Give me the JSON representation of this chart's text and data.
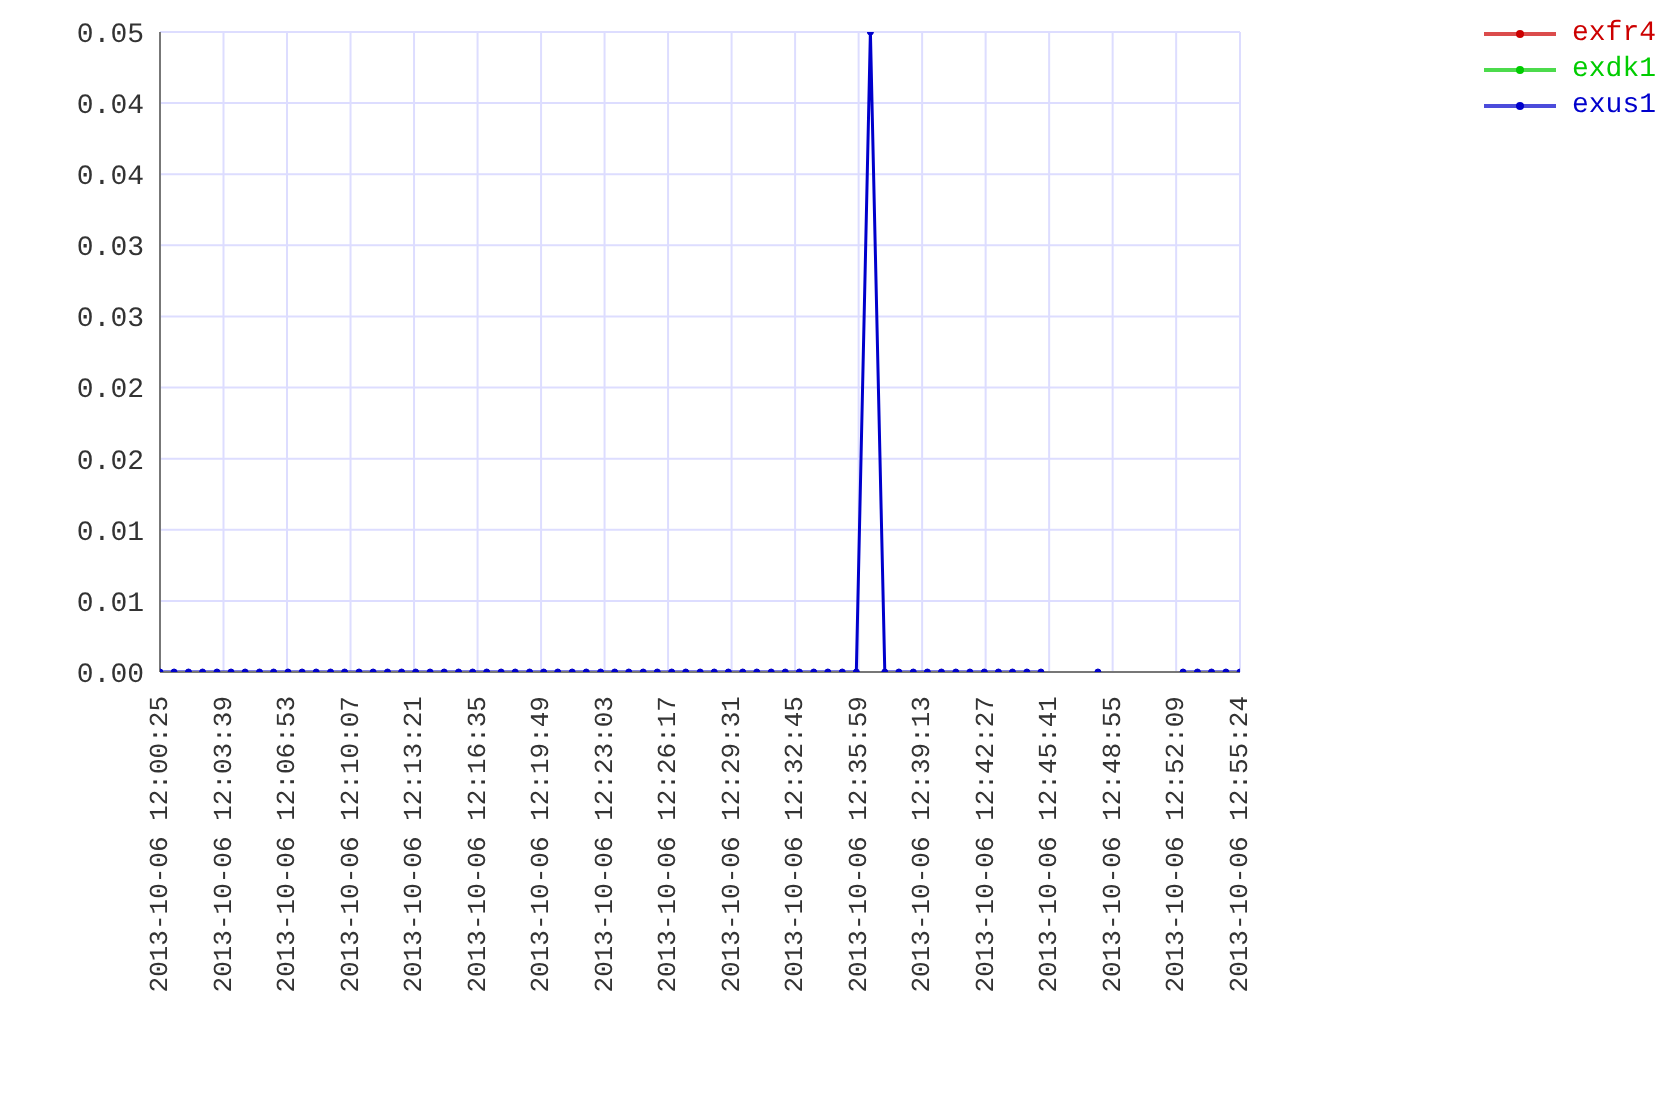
{
  "chart_data": {
    "type": "line",
    "x": [
      "2013-10-06T12:00:25",
      "2013-10-06T12:01:08",
      "2013-10-06T12:01:52",
      "2013-10-06T12:02:35",
      "2013-10-06T12:03:19",
      "2013-10-06T12:04:02",
      "2013-10-06T12:04:45",
      "2013-10-06T12:05:29",
      "2013-10-06T12:06:12",
      "2013-10-06T12:06:56",
      "2013-10-06T12:07:39",
      "2013-10-06T12:08:22",
      "2013-10-06T12:09:06",
      "2013-10-06T12:09:49",
      "2013-10-06T12:10:33",
      "2013-10-06T12:11:16",
      "2013-10-06T12:12:00",
      "2013-10-06T12:12:43",
      "2013-10-06T12:13:26",
      "2013-10-06T12:14:10",
      "2013-10-06T12:14:53",
      "2013-10-06T12:15:37",
      "2013-10-06T12:16:20",
      "2013-10-06T12:17:03",
      "2013-10-06T12:17:47",
      "2013-10-06T12:18:30",
      "2013-10-06T12:19:14",
      "2013-10-06T12:19:57",
      "2013-10-06T12:20:40",
      "2013-10-06T12:21:24",
      "2013-10-06T12:22:07",
      "2013-10-06T12:22:51",
      "2013-10-06T12:23:34",
      "2013-10-06T12:24:17",
      "2013-10-06T12:25:01",
      "2013-10-06T12:25:44",
      "2013-10-06T12:26:28",
      "2013-10-06T12:27:11",
      "2013-10-06T12:27:55",
      "2013-10-06T12:28:38",
      "2013-10-06T12:29:21",
      "2013-10-06T12:30:05",
      "2013-10-06T12:30:48",
      "2013-10-06T12:31:32",
      "2013-10-06T12:32:15",
      "2013-10-06T12:32:58",
      "2013-10-06T12:33:42",
      "2013-10-06T12:34:25",
      "2013-10-06T12:35:09",
      "2013-10-06T12:35:52",
      "2013-10-06T12:36:35",
      "2013-10-06T12:37:19",
      "2013-10-06T12:38:02",
      "2013-10-06T12:38:46",
      "2013-10-06T12:39:29",
      "2013-10-06T12:40:12",
      "2013-10-06T12:40:56",
      "2013-10-06T12:41:39",
      "2013-10-06T12:42:23",
      "2013-10-06T12:43:06",
      "2013-10-06T12:43:49",
      "2013-10-06T12:44:33",
      "2013-10-06T12:45:16",
      "2013-10-06T12:46:00",
      "2013-10-06T12:48:10",
      "2013-10-06T12:48:53",
      "2013-10-06T12:52:30",
      "2013-10-06T12:53:14",
      "2013-10-06T12:53:57",
      "2013-10-06T12:54:41",
      "2013-10-06T12:55:24"
    ],
    "series": [
      {
        "name": "exfr4",
        "color": "#cc0000",
        "values": [
          null,
          null,
          null,
          null,
          null,
          null,
          null,
          null,
          null,
          null,
          null,
          null,
          null,
          null,
          null,
          null,
          null,
          null,
          null,
          null,
          null,
          null,
          null,
          null,
          null,
          null,
          null,
          null,
          null,
          null,
          null,
          null,
          null,
          null,
          null,
          null,
          null,
          null,
          null,
          null,
          null,
          null,
          null,
          null,
          null,
          null,
          null,
          null,
          null,
          null,
          null,
          null,
          null,
          null,
          null,
          null,
          null,
          null,
          null,
          null,
          null,
          null,
          null,
          null,
          null,
          null,
          null,
          null,
          null,
          null,
          null
        ]
      },
      {
        "name": "exdk1",
        "color": "#00cc00",
        "values": [
          null,
          null,
          null,
          null,
          null,
          null,
          null,
          null,
          null,
          null,
          null,
          null,
          null,
          null,
          null,
          null,
          null,
          null,
          null,
          null,
          null,
          null,
          null,
          null,
          null,
          null,
          null,
          null,
          null,
          null,
          null,
          null,
          null,
          null,
          null,
          null,
          null,
          null,
          null,
          null,
          null,
          null,
          null,
          null,
          null,
          null,
          null,
          null,
          null,
          null,
          null,
          null,
          null,
          null,
          null,
          null,
          null,
          null,
          null,
          null,
          null,
          null,
          null,
          null,
          null,
          null,
          null,
          null,
          null,
          null,
          null
        ]
      },
      {
        "name": "exus1",
        "color": "#0000cc",
        "values": [
          0,
          0,
          0,
          0,
          0,
          0,
          0,
          0,
          0,
          0,
          0,
          0,
          0,
          0,
          0,
          0,
          0,
          0,
          0,
          0,
          0,
          0,
          0,
          0,
          0,
          0,
          0,
          0,
          0,
          0,
          0,
          0,
          0,
          0,
          0,
          0,
          0,
          0,
          0,
          0,
          0,
          0,
          0,
          0,
          0,
          0,
          0,
          0,
          0,
          0,
          0.045,
          0,
          0,
          0,
          0,
          0,
          0,
          0,
          0,
          0,
          0,
          0,
          0,
          null,
          0,
          null,
          0,
          0,
          0,
          0,
          0
        ]
      }
    ],
    "xlim": [
      "2013-10-06T12:00:25",
      "2013-10-06T12:55:24"
    ],
    "xticks": [
      {
        "value": "2013-10-06T12:00:25",
        "label": "2013-10-06 12:00:25"
      },
      {
        "value": "2013-10-06T12:03:39",
        "label": "2013-10-06 12:03:39"
      },
      {
        "value": "2013-10-06T12:06:53",
        "label": "2013-10-06 12:06:53"
      },
      {
        "value": "2013-10-06T12:10:07",
        "label": "2013-10-06 12:10:07"
      },
      {
        "value": "2013-10-06T12:13:21",
        "label": "2013-10-06 12:13:21"
      },
      {
        "value": "2013-10-06T12:16:35",
        "label": "2013-10-06 12:16:35"
      },
      {
        "value": "2013-10-06T12:19:49",
        "label": "2013-10-06 12:19:49"
      },
      {
        "value": "2013-10-06T12:23:03",
        "label": "2013-10-06 12:23:03"
      },
      {
        "value": "2013-10-06T12:26:17",
        "label": "2013-10-06 12:26:17"
      },
      {
        "value": "2013-10-06T12:29:31",
        "label": "2013-10-06 12:29:31"
      },
      {
        "value": "2013-10-06T12:32:45",
        "label": "2013-10-06 12:32:45"
      },
      {
        "value": "2013-10-06T12:35:59",
        "label": "2013-10-06 12:35:59"
      },
      {
        "value": "2013-10-06T12:39:13",
        "label": "2013-10-06 12:39:13"
      },
      {
        "value": "2013-10-06T12:42:27",
        "label": "2013-10-06 12:42:27"
      },
      {
        "value": "2013-10-06T12:45:41",
        "label": "2013-10-06 12:45:41"
      },
      {
        "value": "2013-10-06T12:48:55",
        "label": "2013-10-06 12:48:55"
      },
      {
        "value": "2013-10-06T12:52:09",
        "label": "2013-10-06 12:52:09"
      },
      {
        "value": "2013-10-06T12:55:24",
        "label": "2013-10-06 12:55:24"
      }
    ],
    "ylim": [
      0,
      0.045
    ],
    "yticks": [
      {
        "value": 0,
        "label": "0.00"
      },
      {
        "value": 0.005,
        "label": "0.01"
      },
      {
        "value": 0.01,
        "label": "0.01"
      },
      {
        "value": 0.015,
        "label": "0.02"
      },
      {
        "value": 0.02,
        "label": "0.02"
      },
      {
        "value": 0.025,
        "label": "0.03"
      },
      {
        "value": 0.03,
        "label": "0.03"
      },
      {
        "value": 0.035,
        "label": "0.04"
      },
      {
        "value": 0.04,
        "label": "0.04"
      },
      {
        "value": 0.045,
        "label": "0.05"
      }
    ],
    "grid": true,
    "legend": "top right",
    "marker": "circle",
    "line_style": "solid"
  }
}
